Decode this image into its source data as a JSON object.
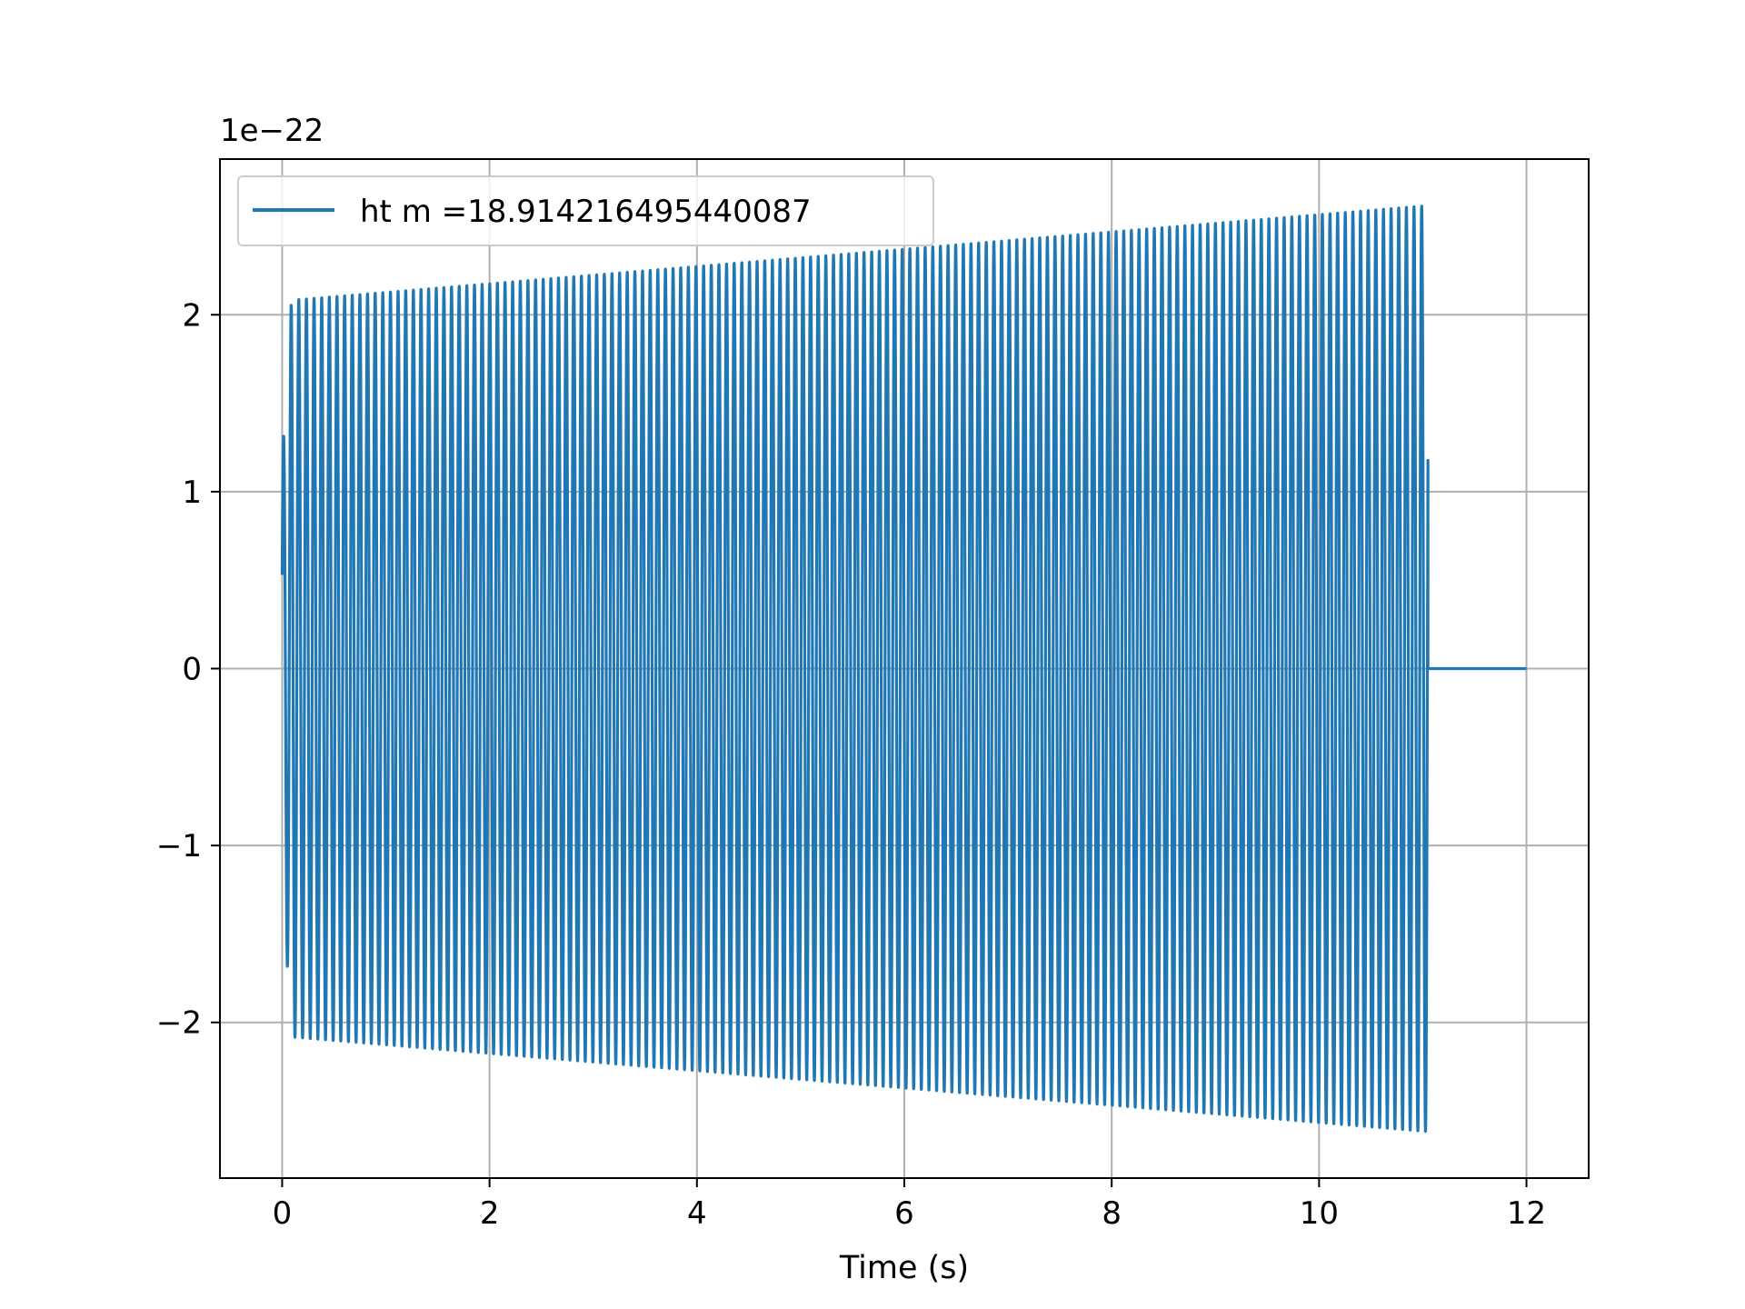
{
  "chart_data": {
    "type": "line",
    "xlabel": "Time (s)",
    "ylabel": "",
    "offset_text": "1e−22",
    "xlim": [
      -0.6,
      12.6
    ],
    "ylim": [
      -2.88,
      2.88
    ],
    "xticks": [
      0,
      2,
      4,
      6,
      8,
      10,
      12
    ],
    "xtick_labels": [
      "0",
      "2",
      "4",
      "6",
      "8",
      "10",
      "12"
    ],
    "yticks": [
      -2,
      -1,
      0,
      1,
      2
    ],
    "ytick_labels": [
      "−2",
      "−1",
      "0",
      "1",
      "2"
    ],
    "grid": true,
    "legend_position": "upper-left",
    "series": [
      {
        "name": "ht m =18.914216495440087",
        "color": "#1f77b4",
        "signal": {
          "kind": "chirp-oscillation",
          "t_start": 0,
          "t_end": 11.05,
          "x_end": 12,
          "start_value": 0.53,
          "first_peak": 1.18,
          "amplitude_start": 2.08,
          "amplitude_end": 2.62,
          "cycles_approx": 150,
          "after_end_value": 0
        }
      }
    ]
  }
}
